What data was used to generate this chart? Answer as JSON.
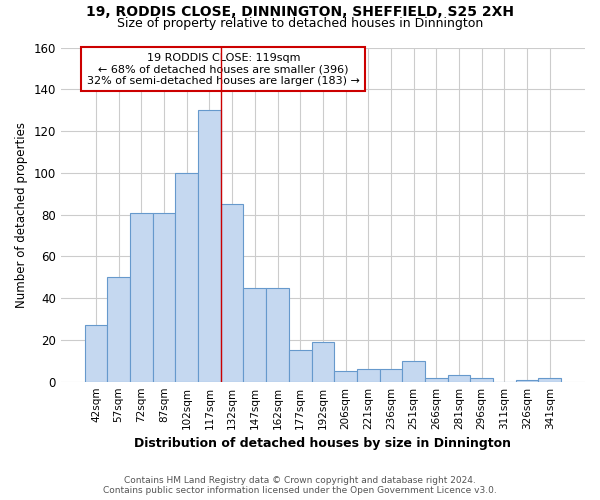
{
  "title1": "19, RODDIS CLOSE, DINNINGTON, SHEFFIELD, S25 2XH",
  "title2": "Size of property relative to detached houses in Dinnington",
  "xlabel": "Distribution of detached houses by size in Dinnington",
  "ylabel": "Number of detached properties",
  "footer1": "Contains HM Land Registry data © Crown copyright and database right 2024.",
  "footer2": "Contains public sector information licensed under the Open Government Licence v3.0.",
  "annotation_line1": "19 RODDIS CLOSE: 119sqm",
  "annotation_line2": "← 68% of detached houses are smaller (396)",
  "annotation_line3": "32% of semi-detached houses are larger (183) →",
  "bar_labels": [
    "42sqm",
    "57sqm",
    "72sqm",
    "87sqm",
    "102sqm",
    "117sqm",
    "132sqm",
    "147sqm",
    "162sqm",
    "177sqm",
    "192sqm",
    "206sqm",
    "221sqm",
    "236sqm",
    "251sqm",
    "266sqm",
    "281sqm",
    "296sqm",
    "311sqm",
    "326sqm",
    "341sqm"
  ],
  "bar_values": [
    27,
    50,
    81,
    81,
    100,
    130,
    85,
    45,
    45,
    15,
    19,
    5,
    6,
    6,
    10,
    2,
    3,
    2,
    0,
    1,
    2
  ],
  "bar_color": "#c5d8f0",
  "bar_edge_color": "#6699cc",
  "vline_x": 5.5,
  "vline_color": "#cc0000",
  "annotation_box_color": "#cc0000",
  "ylim": [
    0,
    160
  ],
  "yticks": [
    0,
    20,
    40,
    60,
    80,
    100,
    120,
    140,
    160
  ],
  "fig_bg_color": "#ffffff",
  "plot_bg_color": "#ffffff",
  "grid_color": "#cccccc"
}
